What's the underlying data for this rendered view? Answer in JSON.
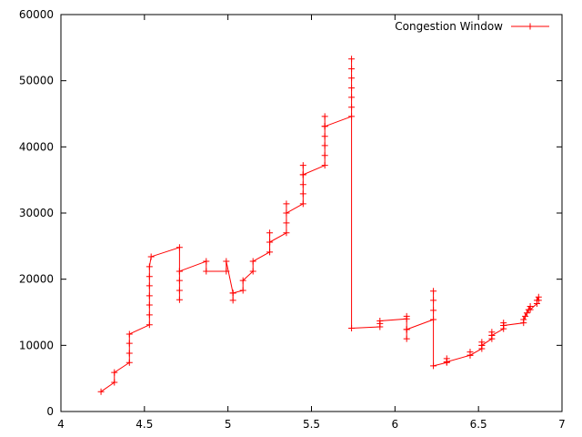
{
  "chart_data": {
    "type": "line",
    "title": "",
    "xlabel": "",
    "ylabel": "",
    "xlim": [
      4,
      7
    ],
    "ylim": [
      0,
      60000
    ],
    "x_ticks": [
      "4",
      "4.5",
      "5",
      "5.5",
      "6",
      "6.5",
      "7"
    ],
    "y_ticks": [
      "0",
      "10000",
      "20000",
      "30000",
      "40000",
      "50000",
      "60000"
    ],
    "grid": false,
    "legend_position": "top-right",
    "series": [
      {
        "name": "Congestion Window",
        "color": "#ff0000",
        "marker": "plus",
        "points": [
          [
            4.24,
            3000
          ],
          [
            4.32,
            4400
          ],
          [
            4.32,
            5900
          ],
          [
            4.41,
            7400
          ],
          [
            4.41,
            8800
          ],
          [
            4.41,
            10300
          ],
          [
            4.41,
            11700
          ],
          [
            4.53,
            13100
          ],
          [
            4.53,
            14600
          ],
          [
            4.53,
            16100
          ],
          [
            4.53,
            17500
          ],
          [
            4.53,
            19000
          ],
          [
            4.53,
            20400
          ],
          [
            4.53,
            21900
          ],
          [
            4.54,
            23400
          ],
          [
            4.71,
            24800
          ],
          [
            4.71,
            21200
          ],
          [
            4.71,
            19800
          ],
          [
            4.71,
            18300
          ],
          [
            4.71,
            16900
          ],
          [
            4.71,
            21200
          ],
          [
            4.87,
            22700
          ],
          [
            4.87,
            21200
          ],
          [
            4.99,
            21200
          ],
          [
            4.99,
            22700
          ],
          [
            5.03,
            17900
          ],
          [
            5.03,
            16800
          ],
          [
            5.03,
            17900
          ],
          [
            5.09,
            18300
          ],
          [
            5.09,
            19800
          ],
          [
            5.15,
            21200
          ],
          [
            5.15,
            22700
          ],
          [
            5.25,
            24100
          ],
          [
            5.25,
            25600
          ],
          [
            5.25,
            27000
          ],
          [
            5.25,
            25600
          ],
          [
            5.35,
            27000
          ],
          [
            5.35,
            28500
          ],
          [
            5.35,
            30000
          ],
          [
            5.35,
            31400
          ],
          [
            5.35,
            30000
          ],
          [
            5.45,
            31400
          ],
          [
            5.45,
            32900
          ],
          [
            5.45,
            34300
          ],
          [
            5.45,
            35800
          ],
          [
            5.45,
            37200
          ],
          [
            5.45,
            35800
          ],
          [
            5.58,
            37200
          ],
          [
            5.58,
            38700
          ],
          [
            5.58,
            40200
          ],
          [
            5.58,
            41600
          ],
          [
            5.58,
            43100
          ],
          [
            5.58,
            44600
          ],
          [
            5.58,
            43100
          ],
          [
            5.74,
            44600
          ],
          [
            5.74,
            46000
          ],
          [
            5.74,
            47500
          ],
          [
            5.74,
            48900
          ],
          [
            5.74,
            50400
          ],
          [
            5.74,
            51800
          ],
          [
            5.74,
            53300
          ],
          [
            5.74,
            12600
          ],
          [
            5.91,
            12800
          ],
          [
            5.91,
            13300
          ],
          [
            5.91,
            13700
          ],
          [
            6.07,
            14000
          ],
          [
            6.07,
            14400
          ],
          [
            6.07,
            12400
          ],
          [
            6.07,
            11000
          ],
          [
            6.07,
            12400
          ],
          [
            6.23,
            13900
          ],
          [
            6.23,
            15300
          ],
          [
            6.23,
            16800
          ],
          [
            6.23,
            18200
          ],
          [
            6.23,
            6900
          ],
          [
            6.31,
            7400
          ],
          [
            6.31,
            8000
          ],
          [
            6.31,
            7500
          ],
          [
            6.45,
            8500
          ],
          [
            6.45,
            9000
          ],
          [
            6.45,
            8500
          ],
          [
            6.52,
            9500
          ],
          [
            6.52,
            10000
          ],
          [
            6.52,
            10500
          ],
          [
            6.52,
            10000
          ],
          [
            6.58,
            11000
          ],
          [
            6.58,
            11500
          ],
          [
            6.58,
            12000
          ],
          [
            6.58,
            11500
          ],
          [
            6.65,
            12500
          ],
          [
            6.65,
            13000
          ],
          [
            6.65,
            13400
          ],
          [
            6.65,
            13000
          ],
          [
            6.77,
            13400
          ],
          [
            6.77,
            13900
          ],
          [
            6.78,
            14400
          ],
          [
            6.79,
            14900
          ],
          [
            6.8,
            15400
          ],
          [
            6.81,
            15900
          ],
          [
            6.81,
            15400
          ],
          [
            6.85,
            16300
          ],
          [
            6.85,
            16800
          ],
          [
            6.86,
            17300
          ],
          [
            6.86,
            16800
          ]
        ]
      }
    ]
  }
}
